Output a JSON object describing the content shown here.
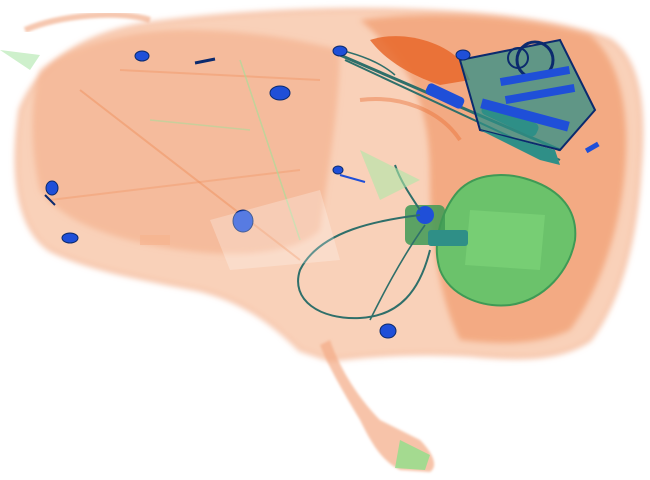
{
  "scan": {
    "background_color": "#ffffff",
    "palette": {
      "organic_light": "#f7b48e",
      "organic_mid": "#f0925e",
      "organic_dark": "#e8692c",
      "inorganic_green": "#7fd67a",
      "inorganic_green_dark": "#3f9a55",
      "metal_blue": "#1f4fd8",
      "metal_dark": "#0b2a6e",
      "teal": "#2f8f87"
    },
    "objects": [
      {
        "id": "bag",
        "label": "bag-outline"
      },
      {
        "id": "container",
        "label": "green-container"
      },
      {
        "id": "cable",
        "label": "cable-loop"
      },
      {
        "id": "tool-pouch",
        "label": "tool-kit"
      },
      {
        "id": "knife",
        "label": "knife-blade"
      },
      {
        "id": "strap",
        "label": "bottom-strap"
      }
    ]
  }
}
